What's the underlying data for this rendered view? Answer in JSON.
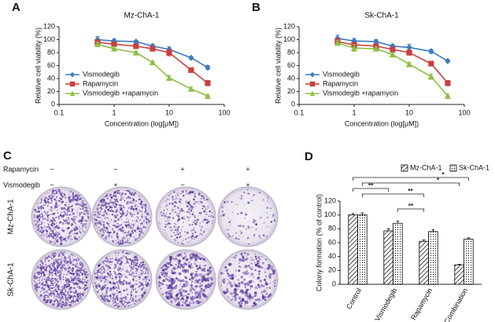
{
  "chart_data": [
    {
      "type": "line",
      "label": "A",
      "title": "Mz-ChA-1",
      "x_label": "Concentration (log[μM])",
      "y_label": "Relative cell viability (%)",
      "x": [
        0.5,
        1,
        2.5,
        5,
        10,
        25,
        50
      ],
      "xscale": "log",
      "xlim": [
        0.1,
        100
      ],
      "xticks": [
        0.1,
        1,
        10,
        100
      ],
      "ylim": [
        0,
        120
      ],
      "yticks": [
        0,
        20,
        40,
        60,
        80,
        100,
        120
      ],
      "legend": "lower left",
      "series": [
        {
          "name": "Vismodegib",
          "color": "#3b78c3",
          "marker": "diamond",
          "values": [
            100,
            98,
            97,
            90,
            85,
            72,
            57
          ],
          "errors": [
            5,
            3,
            2,
            3,
            4,
            2,
            3
          ]
        },
        {
          "name": "Rapamycin",
          "color": "#c9403f",
          "marker": "square",
          "values": [
            96,
            93,
            90,
            86,
            80,
            53,
            33
          ],
          "errors": [
            4,
            3,
            2,
            3,
            5,
            3,
            4
          ]
        },
        {
          "name": "Vismodegib +rapamycin",
          "color": "#8dbf45",
          "marker": "triangle",
          "values": [
            93,
            86,
            80,
            65,
            41,
            24,
            13
          ],
          "errors": [
            3,
            3,
            2,
            2,
            4,
            3,
            2
          ]
        }
      ]
    },
    {
      "type": "line",
      "label": "B",
      "title": "Sk-ChA-1",
      "x_label": "Concentration (log[μM])",
      "y_label": "Relative cell viability (%)",
      "x": [
        0.5,
        1,
        2.5,
        5,
        10,
        25,
        50
      ],
      "xscale": "log",
      "xlim": [
        0.1,
        100
      ],
      "xticks": [
        0.1,
        1,
        10,
        100
      ],
      "ylim": [
        0,
        120
      ],
      "yticks": [
        0,
        20,
        40,
        60,
        80,
        100,
        120
      ],
      "legend": "lower left",
      "series": [
        {
          "name": "Vismodegib",
          "color": "#3b78c3",
          "marker": "diamond",
          "values": [
            102,
            98,
            97,
            90,
            88,
            82,
            67
          ],
          "errors": [
            5,
            4,
            3,
            3,
            5,
            3,
            2
          ]
        },
        {
          "name": "Rapamycin",
          "color": "#c9403f",
          "marker": "square",
          "values": [
            97,
            92,
            90,
            85,
            80,
            63,
            33
          ],
          "errors": [
            5,
            4,
            3,
            3,
            4,
            3,
            4
          ]
        },
        {
          "name": "Vismodegib +rapamycin",
          "color": "#8dbf45",
          "marker": "triangle",
          "values": [
            95,
            87,
            86,
            77,
            62,
            43,
            13
          ],
          "errors": [
            4,
            5,
            3,
            3,
            3,
            4,
            3
          ]
        }
      ]
    },
    {
      "type": "bar",
      "label": "D",
      "y_label": "Colony formation (% of control)",
      "categories": [
        "Control",
        "Vismodegib",
        "Rapamycin",
        "Combination"
      ],
      "ylim": [
        0,
        120
      ],
      "yticks": [
        0,
        20,
        40,
        60,
        80,
        100,
        120
      ],
      "legend": "top",
      "series": [
        {
          "name": "Mz-ChA-1",
          "color": "#000000",
          "pattern": "hatch",
          "values": [
            100,
            77,
            62,
            28
          ],
          "errors": [
            2,
            3,
            2,
            1
          ]
        },
        {
          "name": "Sk-ChA-1",
          "color": "#000000",
          "pattern": "dots",
          "values": [
            100,
            88,
            76,
            65
          ],
          "errors": [
            3,
            3,
            3,
            2
          ]
        }
      ],
      "annotations": [
        "*",
        "*",
        "**",
        "**",
        "**"
      ]
    }
  ],
  "panel_c": {
    "label": "C",
    "rows": [
      "Mz-ChA-1",
      "Sk-ChA-1"
    ],
    "conditions": [
      {
        "name": "Rapamycin",
        "signs": [
          "−",
          "−",
          "+",
          "+"
        ]
      },
      {
        "name": "Vismodegib",
        "signs": [
          "−",
          "+",
          "−",
          "+"
        ]
      }
    ]
  }
}
